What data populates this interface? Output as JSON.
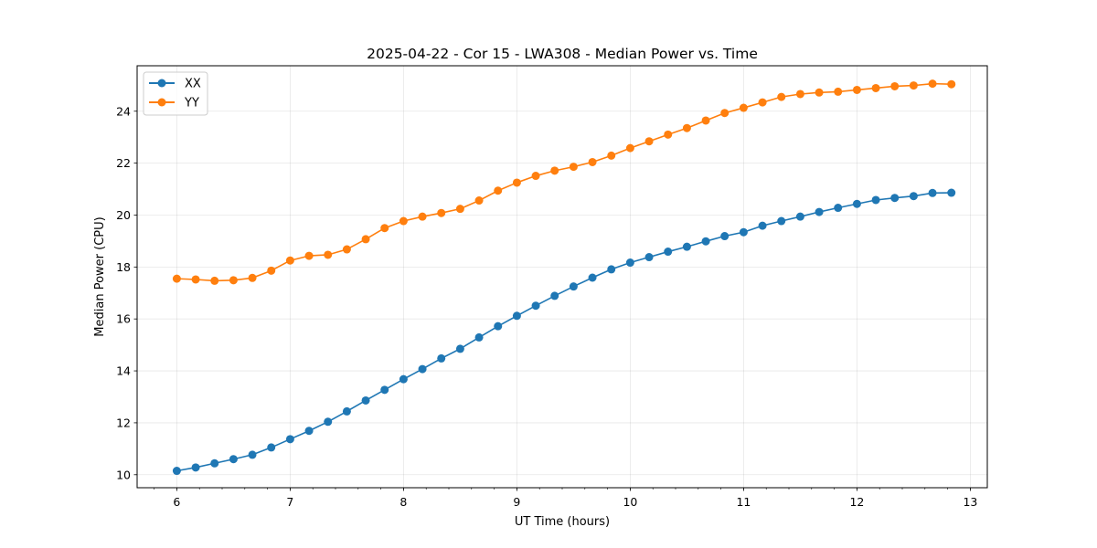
{
  "chart_data": {
    "type": "line",
    "title": "2025-04-22 - Cor 15 - LWA308 - Median Power vs. Time",
    "xlabel": "UT Time (hours)",
    "ylabel": "Median Power (CPU)",
    "xlim": [
      5.65,
      13.15
    ],
    "ylim": [
      9.5,
      25.75
    ],
    "xticks": [
      6,
      7,
      8,
      9,
      10,
      11,
      12,
      13
    ],
    "yticks": [
      10,
      12,
      14,
      16,
      18,
      20,
      22,
      24
    ],
    "x_minor_step": 0.2,
    "grid": true,
    "legend_position": "top-left",
    "x": [
      6.0,
      6.1667,
      6.3333,
      6.5,
      6.6667,
      6.8333,
      7.0,
      7.1667,
      7.3333,
      7.5,
      7.6667,
      7.8333,
      8.0,
      8.1667,
      8.3333,
      8.5,
      8.6667,
      8.8333,
      9.0,
      9.1667,
      9.3333,
      9.5,
      9.6667,
      9.8333,
      10.0,
      10.1667,
      10.3333,
      10.5,
      10.6667,
      10.8333,
      11.0,
      11.1667,
      11.3333,
      11.5,
      11.6667,
      11.8333,
      12.0,
      12.1667,
      12.3333,
      12.5,
      12.6667,
      12.8333
    ],
    "series": [
      {
        "name": "XX",
        "color": "#1f77b4",
        "values": [
          10.15,
          10.28,
          10.44,
          10.6,
          10.77,
          11.05,
          11.37,
          11.69,
          12.04,
          12.44,
          12.86,
          13.27,
          13.68,
          14.07,
          14.48,
          14.85,
          15.29,
          15.72,
          16.12,
          16.51,
          16.89,
          17.25,
          17.59,
          17.91,
          18.17,
          18.38,
          18.59,
          18.78,
          18.99,
          19.19,
          19.34,
          19.59,
          19.77,
          19.94,
          20.12,
          20.28,
          20.43,
          20.58,
          20.66,
          20.73,
          20.85,
          20.86
        ]
      },
      {
        "name": "YY",
        "color": "#ff7f0e",
        "values": [
          17.55,
          17.52,
          17.47,
          17.49,
          17.58,
          17.86,
          18.25,
          18.43,
          18.47,
          18.68,
          19.07,
          19.5,
          19.77,
          19.94,
          20.08,
          20.24,
          20.56,
          20.94,
          21.25,
          21.51,
          21.71,
          21.86,
          22.04,
          22.29,
          22.58,
          22.84,
          23.1,
          23.35,
          23.64,
          23.93,
          24.13,
          24.34,
          24.55,
          24.66,
          24.72,
          24.75,
          24.82,
          24.89,
          24.96,
          24.99,
          25.06,
          25.04
        ]
      }
    ]
  }
}
